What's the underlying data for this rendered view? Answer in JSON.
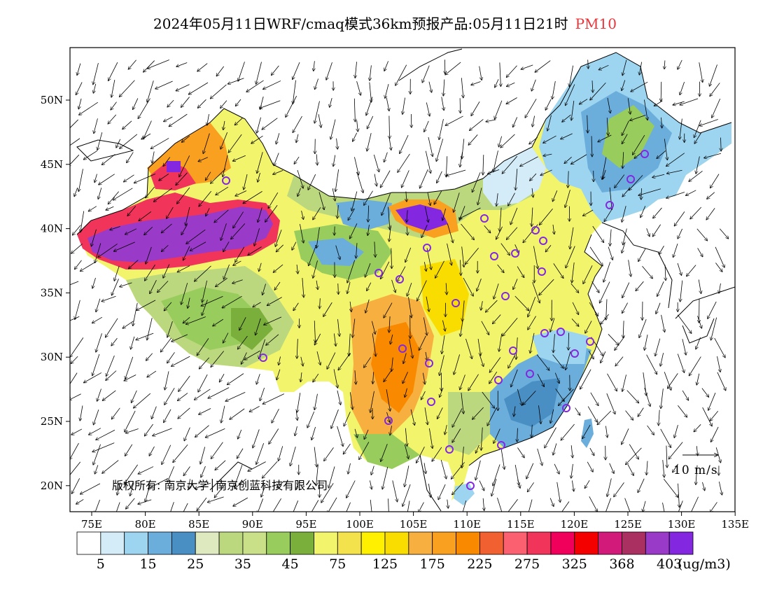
{
  "title": {
    "main": "2024年05月11日WRF/cmaq模式36km预报产品:05月11日21时",
    "pollutant": "PM10"
  },
  "map": {
    "lon_ticks": [
      "75E",
      "80E",
      "85E",
      "90E",
      "95E",
      "100E",
      "105E",
      "110E",
      "115E",
      "120E",
      "125E",
      "130E",
      "135E"
    ],
    "lat_ticks": [
      "50N",
      "45N",
      "40N",
      "35N",
      "30N",
      "25N",
      "20N"
    ],
    "wind_reference": "10 m/s",
    "copyright": "版权所有: 南京大学│南京创蓝科技有限公司"
  },
  "legend": {
    "colors": [
      "#ffffff",
      "#d4ecf8",
      "#9dd5f0",
      "#6baedc",
      "#4a8fc3",
      "#dfe9c0",
      "#bcd87e",
      "#c9e088",
      "#98cc5c",
      "#7aaf3c",
      "#f2f56c",
      "#f4e24c",
      "#fff000",
      "#f9dd00",
      "#f7b040",
      "#f9a020",
      "#f98a00",
      "#f06030",
      "#fb6070",
      "#f0345a",
      "#f0005a",
      "#f50000",
      "#d21a7a",
      "#a93060",
      "#9a3ac8",
      "#8328e0"
    ],
    "labels": [
      "5",
      "15",
      "25",
      "35",
      "45",
      "75",
      "125",
      "175",
      "225",
      "275",
      "325",
      "368",
      "403"
    ],
    "unit": "(ug/m3)"
  }
}
